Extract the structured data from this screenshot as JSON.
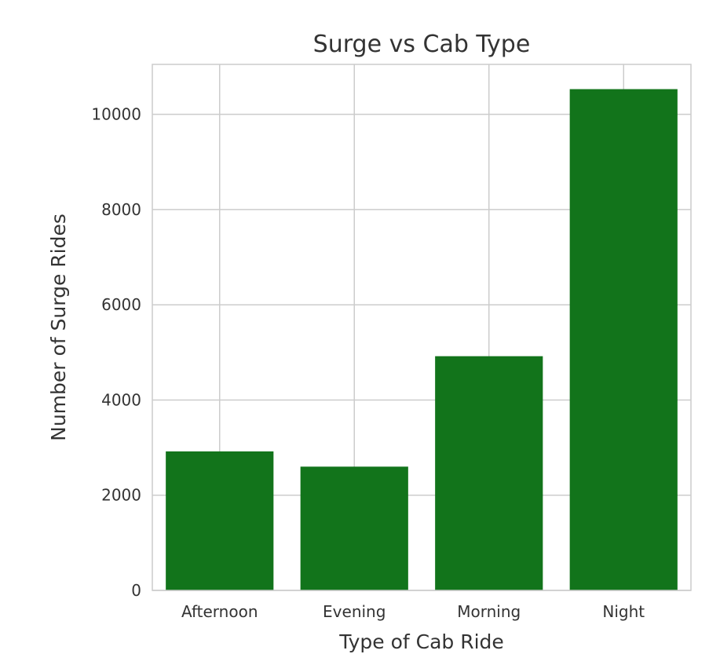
{
  "chart_data": {
    "type": "bar",
    "title": "Surge vs Cab Type",
    "xlabel": "Type of Cab Ride",
    "ylabel": "Number of Surge Rides",
    "categories": [
      "Afternoon",
      "Evening",
      "Morning",
      "Night"
    ],
    "values": [
      2920,
      2600,
      4920,
      10530
    ],
    "ylim": [
      0,
      11050
    ],
    "yticks": [
      0,
      2000,
      4000,
      6000,
      8000,
      10000
    ],
    "ytick_labels": [
      "0",
      "2000",
      "4000",
      "6000",
      "8000",
      "10000"
    ],
    "grid": true,
    "legend": "none",
    "bar_color": "#12741b",
    "grid_color": "#cccccc",
    "spine_color": "#cccccc"
  }
}
